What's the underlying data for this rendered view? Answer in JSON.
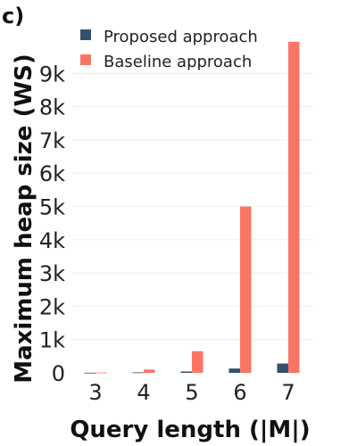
{
  "chart_data": {
    "type": "bar",
    "panel_label": "c)",
    "title": "",
    "xlabel": "Query length (|M|)",
    "ylabel": "Maximum heap size (WS)",
    "categories": [
      "3",
      "4",
      "5",
      "6",
      "7"
    ],
    "ylim": [
      0,
      10000
    ],
    "yticks": [
      0,
      1000,
      2000,
      3000,
      4000,
      5000,
      6000,
      7000,
      8000,
      9000
    ],
    "ytick_labels": [
      "0",
      "1k",
      "2k",
      "3k",
      "4k",
      "5k",
      "6k",
      "7k",
      "8k",
      "9k"
    ],
    "grid": true,
    "legend_position": "top-left",
    "series": [
      {
        "name": "Proposed approach",
        "color": "#34506b",
        "values": [
          5,
          15,
          40,
          130,
          280
        ]
      },
      {
        "name": "Baseline approach",
        "color": "#fa7564",
        "values": [
          10,
          100,
          650,
          5000,
          9950
        ]
      }
    ]
  }
}
